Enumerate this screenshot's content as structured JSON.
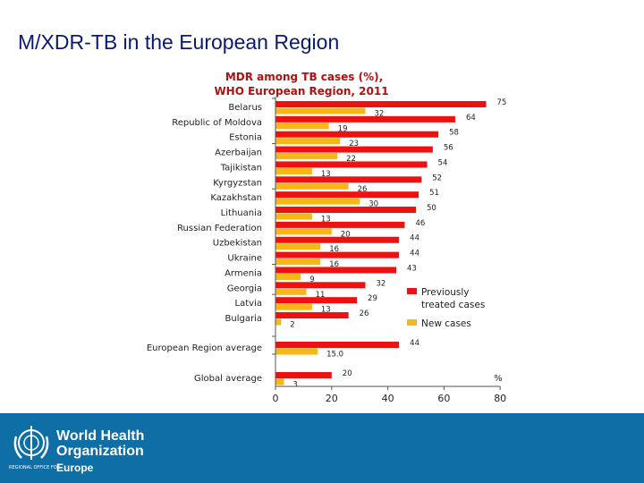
{
  "slide": {
    "title": "M/XDR-TB in the European Region"
  },
  "footer": {
    "org_line1": "World Health",
    "org_line2": "Organization",
    "regional_office": "REGIONAL OFFICE FOR",
    "region": "Europe"
  },
  "chart_data": {
    "type": "bar",
    "orientation": "horizontal",
    "title": "MDR among TB cases (%),",
    "subtitle": "WHO European Region, 2011",
    "categories": [
      "Belarus",
      "Republic of Moldova",
      "Estonia",
      "Azerbaijan",
      "Tajikistan",
      "Kyrgyzstan",
      "Kazakhstan",
      "Lithuania",
      "Russian Federation",
      "Uzbekistan",
      "Ukraine",
      "Armenia",
      "Georgia",
      "Latvia",
      "Bulgaria",
      "European Region average",
      "Global average"
    ],
    "series": [
      {
        "name": "Previously treated cases",
        "color": "#ee1111",
        "values": [
          75,
          64,
          58,
          56,
          54,
          52,
          51,
          50,
          46,
          44,
          44,
          43,
          32,
          29,
          26,
          44,
          20
        ],
        "labels": [
          "75",
          "64",
          "58",
          "56",
          "54",
          "52",
          "51",
          "50",
          "46",
          "44",
          "44",
          "43",
          "32",
          "29",
          "26",
          "44",
          "20"
        ]
      },
      {
        "name": "New cases",
        "color": "#f6b817",
        "values": [
          32,
          19,
          23,
          22,
          13,
          26,
          30,
          13,
          20,
          16,
          16,
          9,
          11,
          13,
          2,
          15.0,
          3
        ],
        "labels": [
          "32",
          "19",
          "23",
          "22",
          "13",
          "26",
          "30",
          "13",
          "20",
          "16",
          "16",
          "9",
          "11",
          "13",
          "2",
          "15.0",
          "3"
        ]
      }
    ],
    "xlim": [
      0,
      80
    ],
    "xticks": [
      "0",
      "20",
      "40",
      "60",
      "80"
    ],
    "xunit": "%",
    "grid": false,
    "legend": "right"
  }
}
